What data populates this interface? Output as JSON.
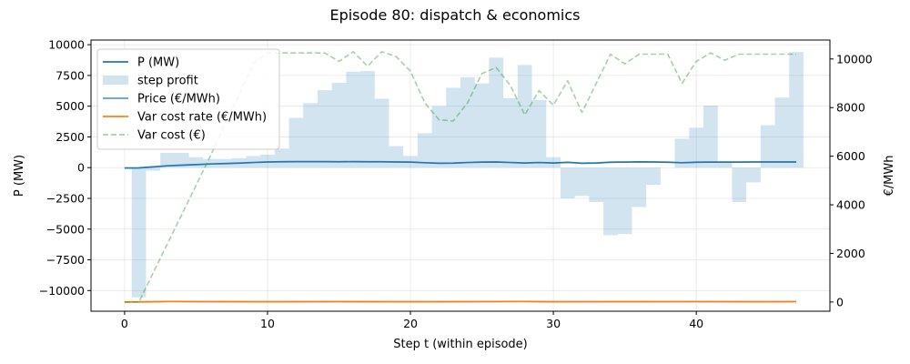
{
  "chart_data": {
    "type": "line",
    "title": "Episode 80: dispatch & economics",
    "xlabel": "Step t (within episode)",
    "ylabel_left": "P (MW)",
    "ylabel_right": "€/MWh",
    "xlim": [
      -2.35,
      49.35
    ],
    "ylim_left": [
      -11680,
      10380
    ],
    "ylim_right": [
      -380,
      10780
    ],
    "x_ticks": [
      0,
      10,
      20,
      30,
      40
    ],
    "y_ticks_left": [
      -10000,
      -7500,
      -5000,
      -2500,
      0,
      2500,
      5000,
      7500,
      10000
    ],
    "y_ticks_right": [
      0,
      2000,
      4000,
      6000,
      8000,
      10000
    ],
    "grid": true,
    "legend_position": "upper-left",
    "series": [
      {
        "name": "P (MW)",
        "axis": "left",
        "kind": "line",
        "color": "#1f77b4",
        "x": [
          0,
          1,
          2,
          3,
          4,
          5,
          6,
          7,
          8,
          9,
          10,
          11,
          12,
          13,
          14,
          15,
          16,
          17,
          18,
          19,
          20,
          21,
          22,
          23,
          24,
          25,
          26,
          27,
          28,
          29,
          30,
          31,
          32,
          33,
          34,
          35,
          36,
          37,
          38,
          39,
          40,
          41,
          42,
          43,
          44,
          45,
          46,
          47
        ],
        "values": [
          -30,
          -20,
          60,
          150,
          200,
          250,
          300,
          330,
          370,
          420,
          460,
          480,
          490,
          490,
          490,
          480,
          490,
          480,
          480,
          460,
          450,
          400,
          360,
          370,
          420,
          450,
          460,
          420,
          380,
          420,
          380,
          430,
          360,
          380,
          440,
          450,
          470,
          460,
          440,
          400,
          440,
          450,
          450,
          450,
          460,
          460,
          460,
          460
        ]
      },
      {
        "name": "step profit",
        "axis": "left",
        "kind": "bar",
        "color": "#1f77b4",
        "x": [
          0,
          1,
          2,
          3,
          4,
          5,
          6,
          7,
          8,
          9,
          10,
          11,
          12,
          13,
          14,
          15,
          16,
          17,
          18,
          19,
          20,
          21,
          22,
          23,
          24,
          25,
          26,
          27,
          28,
          29,
          30,
          31,
          32,
          33,
          34,
          35,
          36,
          37,
          38,
          39,
          40,
          41,
          42,
          43,
          44,
          45,
          46,
          47
        ],
        "values": [
          0,
          -10550,
          -250,
          1200,
          1200,
          850,
          700,
          700,
          770,
          950,
          1050,
          1550,
          4050,
          5250,
          6300,
          6900,
          7800,
          7850,
          5600,
          1750,
          950,
          2800,
          5000,
          6500,
          7350,
          6850,
          8950,
          5650,
          8350,
          5500,
          850,
          -2500,
          -2300,
          -2800,
          -5500,
          -5400,
          -3200,
          -1400,
          0,
          2350,
          3250,
          5050,
          500,
          -2800,
          -1200,
          3450,
          5700,
          9400
        ]
      },
      {
        "name": "Price (€/MWh)",
        "axis": "right",
        "kind": "line",
        "color": "#5b9bd5",
        "x": [
          0,
          2,
          3,
          5,
          10,
          15,
          20,
          25,
          28,
          30,
          35,
          40,
          45,
          47
        ],
        "values": [
          0,
          10,
          20,
          15,
          10,
          15,
          10,
          15,
          20,
          10,
          12,
          15,
          10,
          15
        ]
      },
      {
        "name": "Var cost rate (€/MWh)",
        "axis": "right",
        "kind": "line",
        "color": "#ff7f0e",
        "x": [
          0,
          2,
          3,
          5,
          10,
          15,
          20,
          25,
          28,
          30,
          35,
          40,
          45,
          47
        ],
        "values": [
          0,
          10,
          20,
          15,
          10,
          15,
          10,
          15,
          20,
          10,
          12,
          15,
          10,
          15
        ]
      },
      {
        "name": "Var cost (€)",
        "axis": "right",
        "kind": "line",
        "style": "dashed",
        "color": "#2ca02c",
        "x": [
          0,
          1,
          2,
          3,
          4,
          5,
          6,
          7,
          8,
          9,
          10,
          11,
          12,
          13,
          14,
          15,
          16,
          17,
          18,
          19,
          20,
          21,
          22,
          23,
          24,
          25,
          26,
          27,
          28,
          29,
          30,
          31,
          32,
          33,
          34,
          35,
          36,
          37,
          38,
          39,
          40,
          41,
          42,
          43,
          44,
          45,
          46,
          47
        ],
        "values": [
          0,
          0,
          1200,
          2400,
          3600,
          4800,
          6000,
          7300,
          8500,
          9800,
          10250,
          10250,
          10250,
          10250,
          10250,
          9900,
          10300,
          9700,
          10300,
          10100,
          9500,
          8200,
          7500,
          7450,
          8200,
          9400,
          9650,
          8900,
          7700,
          8700,
          8100,
          9100,
          7800,
          9000,
          10200,
          9800,
          10200,
          10200,
          10200,
          9000,
          9900,
          10250,
          9950,
          10200,
          10200,
          10200,
          10200,
          10200
        ]
      }
    ]
  }
}
